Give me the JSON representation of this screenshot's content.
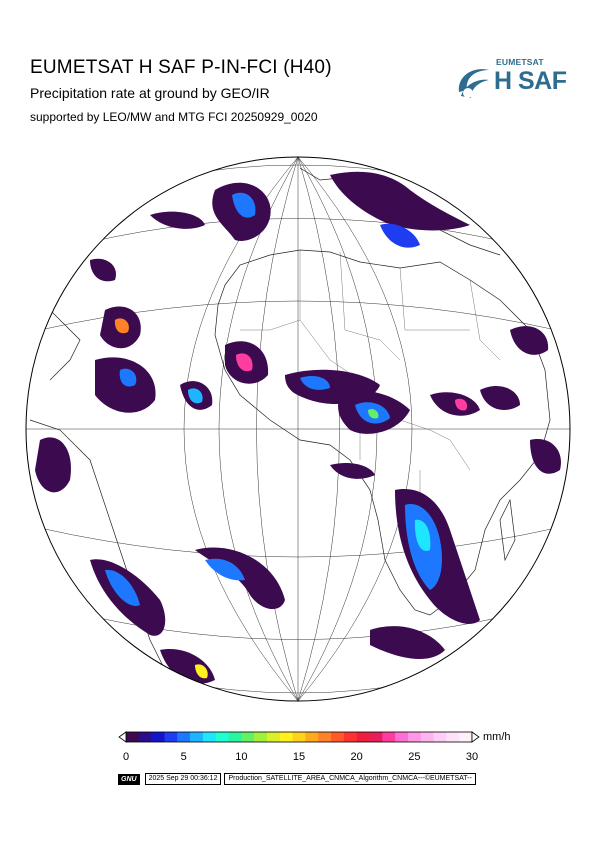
{
  "header": {
    "title": "EUMETSAT H SAF P-IN-FCI (H40)",
    "subtitle": "Precipitation rate at ground by GEO/IR",
    "supported_by": "supported by LEO/MW and MTG FCI 20250929_0020"
  },
  "logo": {
    "small": "EUMETSAT",
    "big": "H SAF",
    "color": "#2e6d8f"
  },
  "colorbar": {
    "unit": "mm/h",
    "min": 0,
    "max": 30,
    "ticks": [
      "0",
      "5",
      "10",
      "15",
      "20",
      "25",
      "30"
    ],
    "colors": [
      "#3c0a4f",
      "#2a0d8c",
      "#1414c8",
      "#1e3cf0",
      "#1e78ff",
      "#1eb4ff",
      "#1ee6ff",
      "#1effd2",
      "#28f5a0",
      "#64f064",
      "#a0f03c",
      "#dcf028",
      "#fff01e",
      "#ffd21e",
      "#ffaa1e",
      "#ff8228",
      "#ff5a28",
      "#ff3232",
      "#f01e3c",
      "#e61e5a",
      "#ff3ca0",
      "#ff6ed2",
      "#ff96e6",
      "#ffb4f0",
      "#ffcdf5",
      "#ffe1f8",
      "#fff0fa"
    ]
  },
  "footer": {
    "badge": "GNU",
    "timestamp": "2025 Sep 29 00:36:12",
    "production": "Production_SATELLITE_AREA_CNMCA_Algorithm_CNMCA---©EUMETSAT--"
  }
}
